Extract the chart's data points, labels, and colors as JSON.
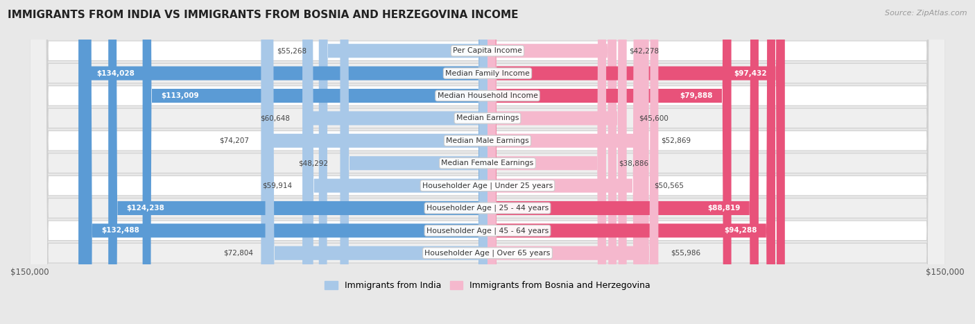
{
  "title": "IMMIGRANTS FROM INDIA VS IMMIGRANTS FROM BOSNIA AND HERZEGOVINA INCOME",
  "source": "Source: ZipAtlas.com",
  "categories": [
    "Per Capita Income",
    "Median Family Income",
    "Median Household Income",
    "Median Earnings",
    "Median Male Earnings",
    "Median Female Earnings",
    "Householder Age | Under 25 years",
    "Householder Age | 25 - 44 years",
    "Householder Age | 45 - 64 years",
    "Householder Age | Over 65 years"
  ],
  "india_values": [
    55268,
    134028,
    113009,
    60648,
    74207,
    48292,
    59914,
    124238,
    132488,
    72804
  ],
  "bosnia_values": [
    42278,
    97432,
    79888,
    45600,
    52869,
    38886,
    50565,
    88819,
    94288,
    55986
  ],
  "india_labels": [
    "$55,268",
    "$134,028",
    "$113,009",
    "$60,648",
    "$74,207",
    "$48,292",
    "$59,914",
    "$124,238",
    "$132,488",
    "$72,804"
  ],
  "bosnia_labels": [
    "$42,278",
    "$97,432",
    "$79,888",
    "$45,600",
    "$52,869",
    "$38,886",
    "$50,565",
    "$88,819",
    "$94,288",
    "$55,986"
  ],
  "india_color_light": "#a8c8e8",
  "india_color_dark": "#5b9bd5",
  "bosnia_color_light": "#f5b8cd",
  "bosnia_color_dark": "#e8527a",
  "max_value": 150000,
  "bg_color": "#e8e8e8",
  "row_bg_white": "#ffffff",
  "row_bg_gray": "#efefef",
  "legend_india": "Immigrants from India",
  "legend_bosnia": "Immigrants from Bosnia and Herzegovina",
  "xlabel_left": "$150,000",
  "xlabel_right": "$150,000",
  "india_threshold": 90000,
  "bosnia_threshold": 75000
}
